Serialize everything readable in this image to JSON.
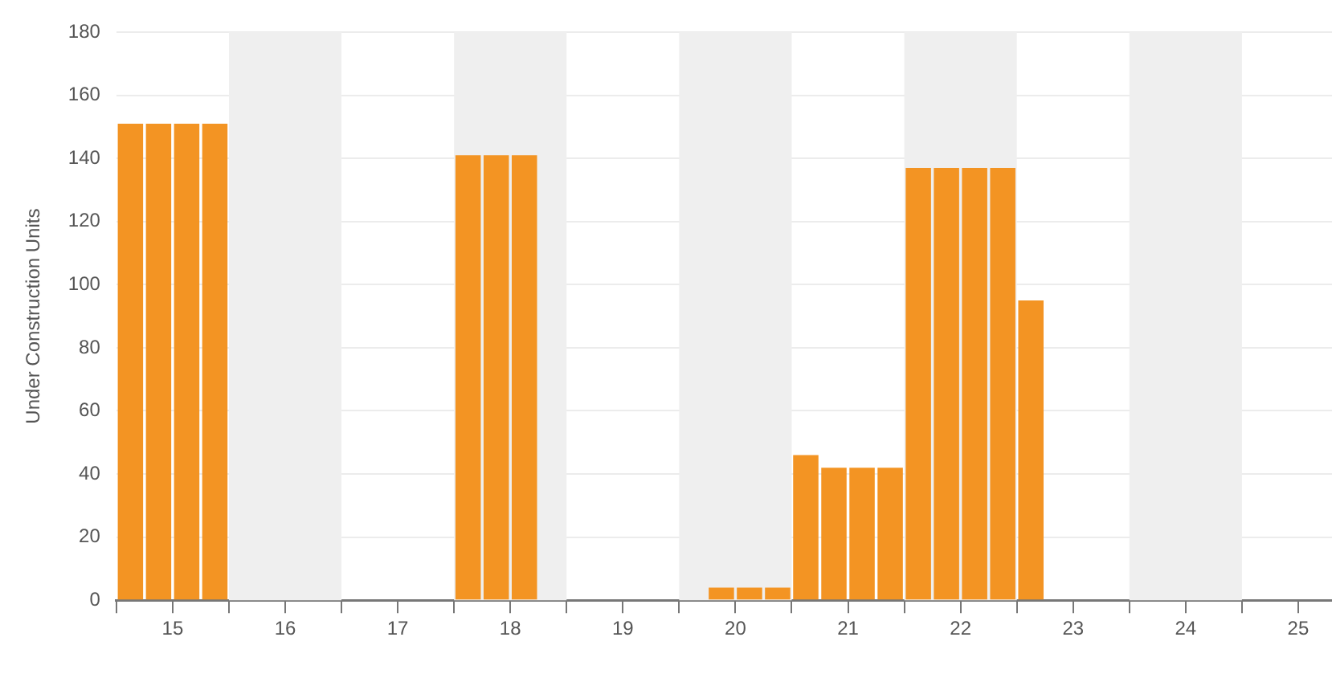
{
  "chart_data": {
    "type": "bar",
    "ylabel": "Under Construction Units",
    "x": [
      14.625,
      14.875,
      15.125,
      15.375,
      17.625,
      17.875,
      18.125,
      19.875,
      20.125,
      20.375,
      20.625,
      20.875,
      21.125,
      21.375,
      21.625,
      21.875,
      22.125,
      22.375,
      22.625
    ],
    "values": [
      151,
      151,
      151,
      151,
      141,
      141,
      141,
      4,
      4,
      4,
      46,
      42,
      42,
      42,
      137,
      137,
      137,
      137,
      95
    ],
    "color": "#f39423",
    "xlim": [
      14.5,
      25.3
    ],
    "xticks": [
      {
        "value": 14.5,
        "label": null
      },
      {
        "value": 15,
        "label": "15"
      },
      {
        "value": 15.5,
        "label": null
      },
      {
        "value": 16,
        "label": "16"
      },
      {
        "value": 16.5,
        "label": null
      },
      {
        "value": 17,
        "label": "17"
      },
      {
        "value": 17.5,
        "label": null
      },
      {
        "value": 18,
        "label": "18"
      },
      {
        "value": 18.5,
        "label": null
      },
      {
        "value": 19,
        "label": "19"
      },
      {
        "value": 19.5,
        "label": null
      },
      {
        "value": 20,
        "label": "20"
      },
      {
        "value": 20.5,
        "label": null
      },
      {
        "value": 21,
        "label": "21"
      },
      {
        "value": 21.5,
        "label": null
      },
      {
        "value": 22,
        "label": "22"
      },
      {
        "value": 22.5,
        "label": null
      },
      {
        "value": 23,
        "label": "23"
      },
      {
        "value": 23.5,
        "label": null
      },
      {
        "value": 24,
        "label": "24"
      },
      {
        "value": 24.5,
        "label": null
      },
      {
        "value": 25,
        "label": "25"
      }
    ],
    "ylim": [
      0,
      180
    ],
    "yticks": [
      0,
      20,
      40,
      60,
      80,
      100,
      120,
      140,
      160,
      180
    ],
    "bands": [
      {
        "axis": "x",
        "from": 15.5,
        "to": 16.5,
        "color": "#efefef"
      },
      {
        "axis": "x",
        "from": 17.5,
        "to": 18.5,
        "color": "#efefef"
      },
      {
        "axis": "x",
        "from": 19.5,
        "to": 20.5,
        "color": "#efefef"
      },
      {
        "axis": "x",
        "from": 21.5,
        "to": 22.5,
        "color": "#efefef"
      },
      {
        "axis": "x",
        "from": 23.5,
        "to": 24.5,
        "color": "#efefef"
      }
    ],
    "grid": "y"
  }
}
